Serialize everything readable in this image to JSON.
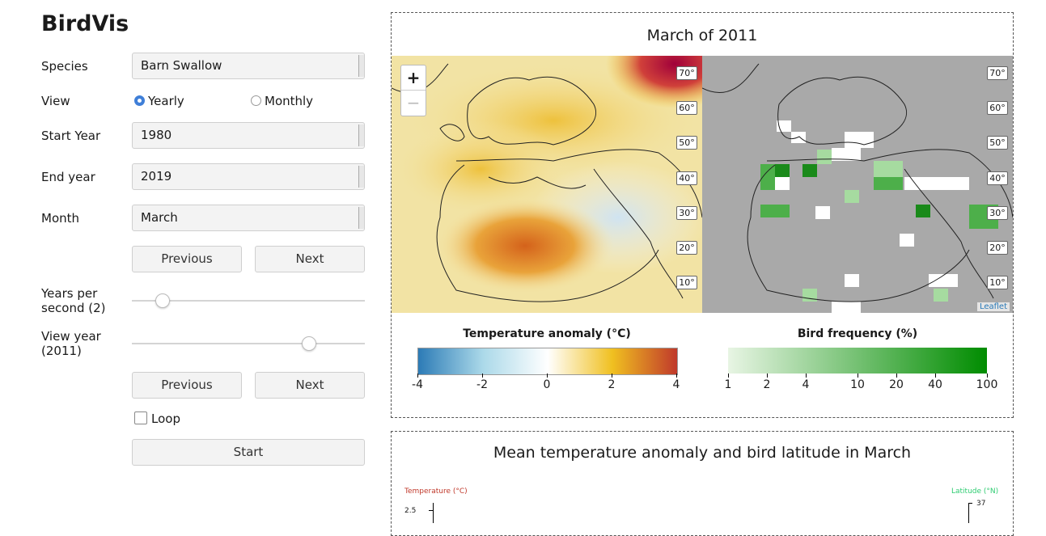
{
  "app_title": "BirdVis",
  "controls": {
    "species": {
      "label": "Species",
      "value": "Barn Swallow"
    },
    "view": {
      "label": "View",
      "options": [
        "Yearly",
        "Monthly"
      ],
      "selected": "Yearly"
    },
    "start_year": {
      "label": "Start Year",
      "value": "1980"
    },
    "end_year": {
      "label": "End year",
      "value": "2019"
    },
    "month": {
      "label": "Month",
      "value": "March"
    },
    "prev1": "Previous",
    "next1": "Next",
    "speed_label": "Years per second (2)",
    "speed_value": 2,
    "viewyear_label": "View year (2011)",
    "viewyear_value": 2011,
    "prev2": "Previous",
    "next2": "Next",
    "loop_label": "Loop",
    "loop_checked": false,
    "start_btn": "Start"
  },
  "map_panel": {
    "title": "March of 2011",
    "zoom_in": "+",
    "zoom_out": "−",
    "lat_labels": [
      "70°",
      "60°",
      "50°",
      "40°",
      "30°",
      "20°",
      "10°"
    ],
    "attribution": "Leaflet",
    "temp_legend": {
      "title": "Temperature anomaly (°C)",
      "ticks": [
        "-4",
        "-2",
        "0",
        "2",
        "4"
      ],
      "colors": [
        "#2c7bb6",
        "#abd9e9",
        "#ffffff",
        "#f0c020",
        "#c0392b"
      ]
    },
    "bird_legend": {
      "title": "Bird frequency (%)",
      "ticks": [
        "1",
        "2",
        "4",
        "10",
        "20",
        "40",
        "100"
      ],
      "colors": [
        "#e8f5e4",
        "#008c00"
      ]
    }
  },
  "chart_panel": {
    "title": "Mean temperature anomaly and bird latitude in March",
    "left_axis_label": "Temperature (°C)",
    "right_axis_label": "Latitude (°N)",
    "left_tick": "2.5",
    "right_tick": "37"
  }
}
